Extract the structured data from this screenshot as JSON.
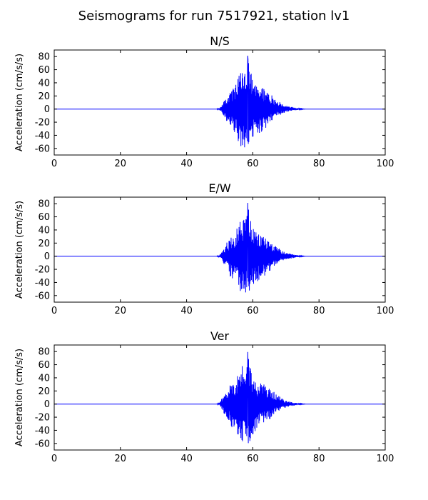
{
  "figure": {
    "title": "Seismograms for run 7517921, station lv1"
  },
  "colors": {
    "trace": "#0000ff",
    "axes": "#000000",
    "background": "#ffffff"
  },
  "chart_data": [
    {
      "type": "line",
      "title": "N/S",
      "xlabel": "",
      "ylabel": "Acceleration (cm/s/s)",
      "xlim": [
        0,
        100
      ],
      "ylim": [
        -70,
        90
      ],
      "xticks": [
        0,
        20,
        40,
        60,
        80,
        100
      ],
      "yticks": [
        -60,
        -40,
        -20,
        0,
        20,
        40,
        60,
        80
      ],
      "grid": false,
      "series": [
        {
          "color": "#0000ff",
          "x": [
            0,
            49,
            50,
            51,
            52,
            53,
            54,
            55,
            56,
            57,
            58,
            58.5,
            59,
            60,
            61,
            62,
            63,
            64,
            65,
            66,
            67,
            68,
            69,
            70,
            71,
            72,
            73,
            74,
            75,
            76,
            100
          ],
          "y": [
            0,
            0,
            2,
            10,
            18,
            25,
            32,
            38,
            55,
            60,
            65,
            82,
            70,
            40,
            38,
            30,
            35,
            28,
            25,
            20,
            15,
            12,
            8,
            5,
            4,
            3,
            2,
            1,
            0.5,
            0,
            0
          ],
          "envelope_min": [
            0,
            0,
            -2,
            -8,
            -18,
            -30,
            -35,
            -40,
            -55,
            -60,
            -65,
            -62,
            -58,
            -45,
            -40,
            -38,
            -35,
            -28,
            -24,
            -18,
            -12,
            -10,
            -7,
            -5,
            -4,
            -3,
            -2,
            -1,
            -0.5,
            0,
            0
          ]
        }
      ]
    },
    {
      "type": "line",
      "title": "E/W",
      "xlabel": "",
      "ylabel": "Acceleration (cm/s/s)",
      "xlim": [
        0,
        100
      ],
      "ylim": [
        -70,
        90
      ],
      "xticks": [
        0,
        20,
        40,
        60,
        80,
        100
      ],
      "yticks": [
        -60,
        -40,
        -20,
        0,
        20,
        40,
        60,
        80
      ],
      "grid": false,
      "series": [
        {
          "color": "#0000ff",
          "x": [
            0,
            49,
            50,
            51,
            52,
            53,
            54,
            55,
            56,
            57,
            58,
            58.5,
            59,
            60,
            61,
            62,
            63,
            64,
            65,
            66,
            67,
            68,
            69,
            70,
            71,
            72,
            73,
            74,
            75,
            76,
            100
          ],
          "y": [
            0,
            0,
            2,
            12,
            20,
            26,
            33,
            40,
            56,
            60,
            64,
            82,
            70,
            42,
            38,
            32,
            36,
            28,
            25,
            20,
            15,
            12,
            8,
            5,
            4,
            3,
            2,
            1,
            0.5,
            0,
            0
          ],
          "envelope_min": [
            0,
            0,
            -2,
            -10,
            -18,
            -30,
            -36,
            -42,
            -55,
            -58,
            -64,
            -62,
            -58,
            -46,
            -40,
            -38,
            -34,
            -28,
            -24,
            -18,
            -12,
            -10,
            -7,
            -5,
            -4,
            -3,
            -2,
            -1,
            -0.5,
            0,
            0
          ]
        }
      ]
    },
    {
      "type": "line",
      "title": "Ver",
      "xlabel": "",
      "ylabel": "Acceleration (cm/s/s)",
      "xlim": [
        0,
        100
      ],
      "ylim": [
        -70,
        90
      ],
      "xticks": [
        0,
        20,
        40,
        60,
        80,
        100
      ],
      "yticks": [
        -60,
        -40,
        -20,
        0,
        20,
        40,
        60,
        80
      ],
      "grid": false,
      "series": [
        {
          "color": "#0000ff",
          "x": [
            0,
            49,
            50,
            51,
            52,
            53,
            54,
            55,
            56,
            57,
            58,
            58.5,
            59,
            60,
            61,
            62,
            63,
            64,
            65,
            66,
            67,
            68,
            69,
            70,
            71,
            72,
            73,
            74,
            75,
            76,
            100
          ],
          "y": [
            0,
            0,
            2,
            14,
            20,
            28,
            35,
            40,
            55,
            62,
            66,
            80,
            70,
            40,
            36,
            30,
            34,
            28,
            24,
            20,
            16,
            12,
            8,
            5,
            4,
            3,
            2,
            1,
            0.5,
            0,
            0
          ],
          "envelope_min": [
            0,
            0,
            -2,
            -12,
            -20,
            -30,
            -38,
            -42,
            -56,
            -60,
            -63,
            -62,
            -58,
            -46,
            -40,
            -36,
            -34,
            -28,
            -24,
            -18,
            -12,
            -10,
            -7,
            -5,
            -4,
            -3,
            -2,
            -1,
            -0.5,
            0,
            0
          ]
        }
      ]
    }
  ]
}
